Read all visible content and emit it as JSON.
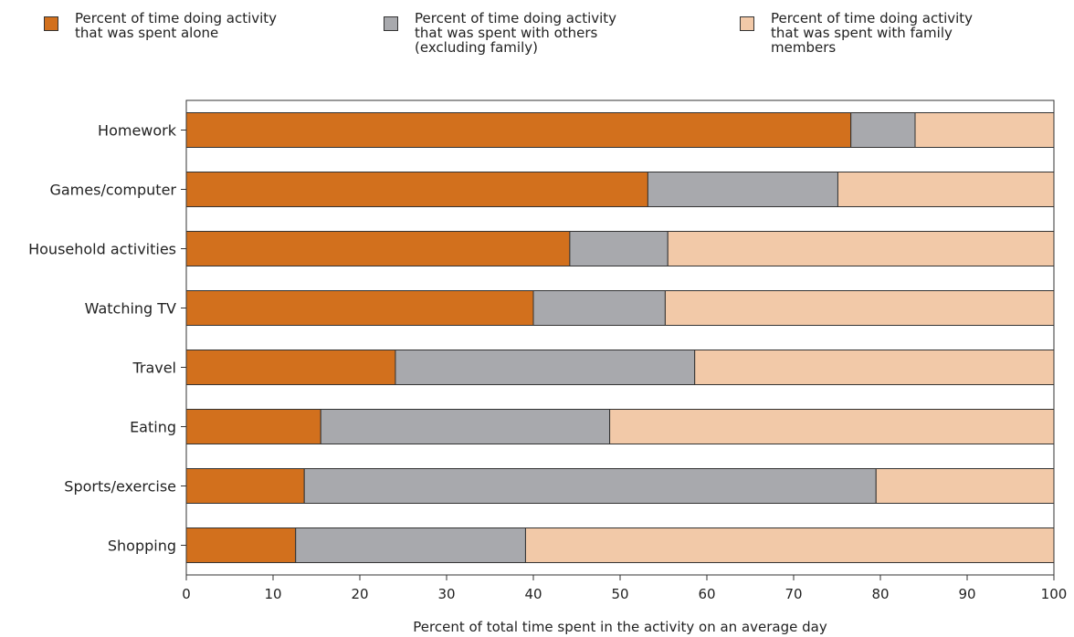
{
  "chart_data": {
    "type": "bar",
    "orientation": "horizontal",
    "stacked": true,
    "categories": [
      "Homework",
      "Games/computer",
      "Household activities",
      "Watching TV",
      "Travel",
      "Eating",
      "Sports/exercise",
      "Shopping"
    ],
    "series": [
      {
        "name": "Percent of time doing activity\nthat was spent alone",
        "color": "#d2701d",
        "values": [
          76.6,
          53.2,
          44.2,
          40.0,
          24.1,
          15.5,
          13.6,
          12.6
        ]
      },
      {
        "name": "Percent of time doing activity\nthat was spent with others\n(excluding family)",
        "color": "#a8a9ad",
        "values": [
          7.4,
          21.9,
          11.3,
          15.2,
          34.5,
          33.3,
          65.9,
          26.5
        ]
      },
      {
        "name": "Percent of time doing activity\nthat was spent with family\nmembers",
        "color": "#f2c9a8",
        "values": [
          16.0,
          24.9,
          44.5,
          44.8,
          41.4,
          51.2,
          20.5,
          60.9
        ]
      }
    ],
    "xlabel": "Percent of total time spent in the activity on an average day",
    "ylabel": "",
    "xlim": [
      0,
      100
    ],
    "xticks": [
      "0",
      "10",
      "20",
      "30",
      "40",
      "50",
      "60",
      "70",
      "80",
      "90",
      "100"
    ],
    "grid": false,
    "legend_position": "top"
  }
}
